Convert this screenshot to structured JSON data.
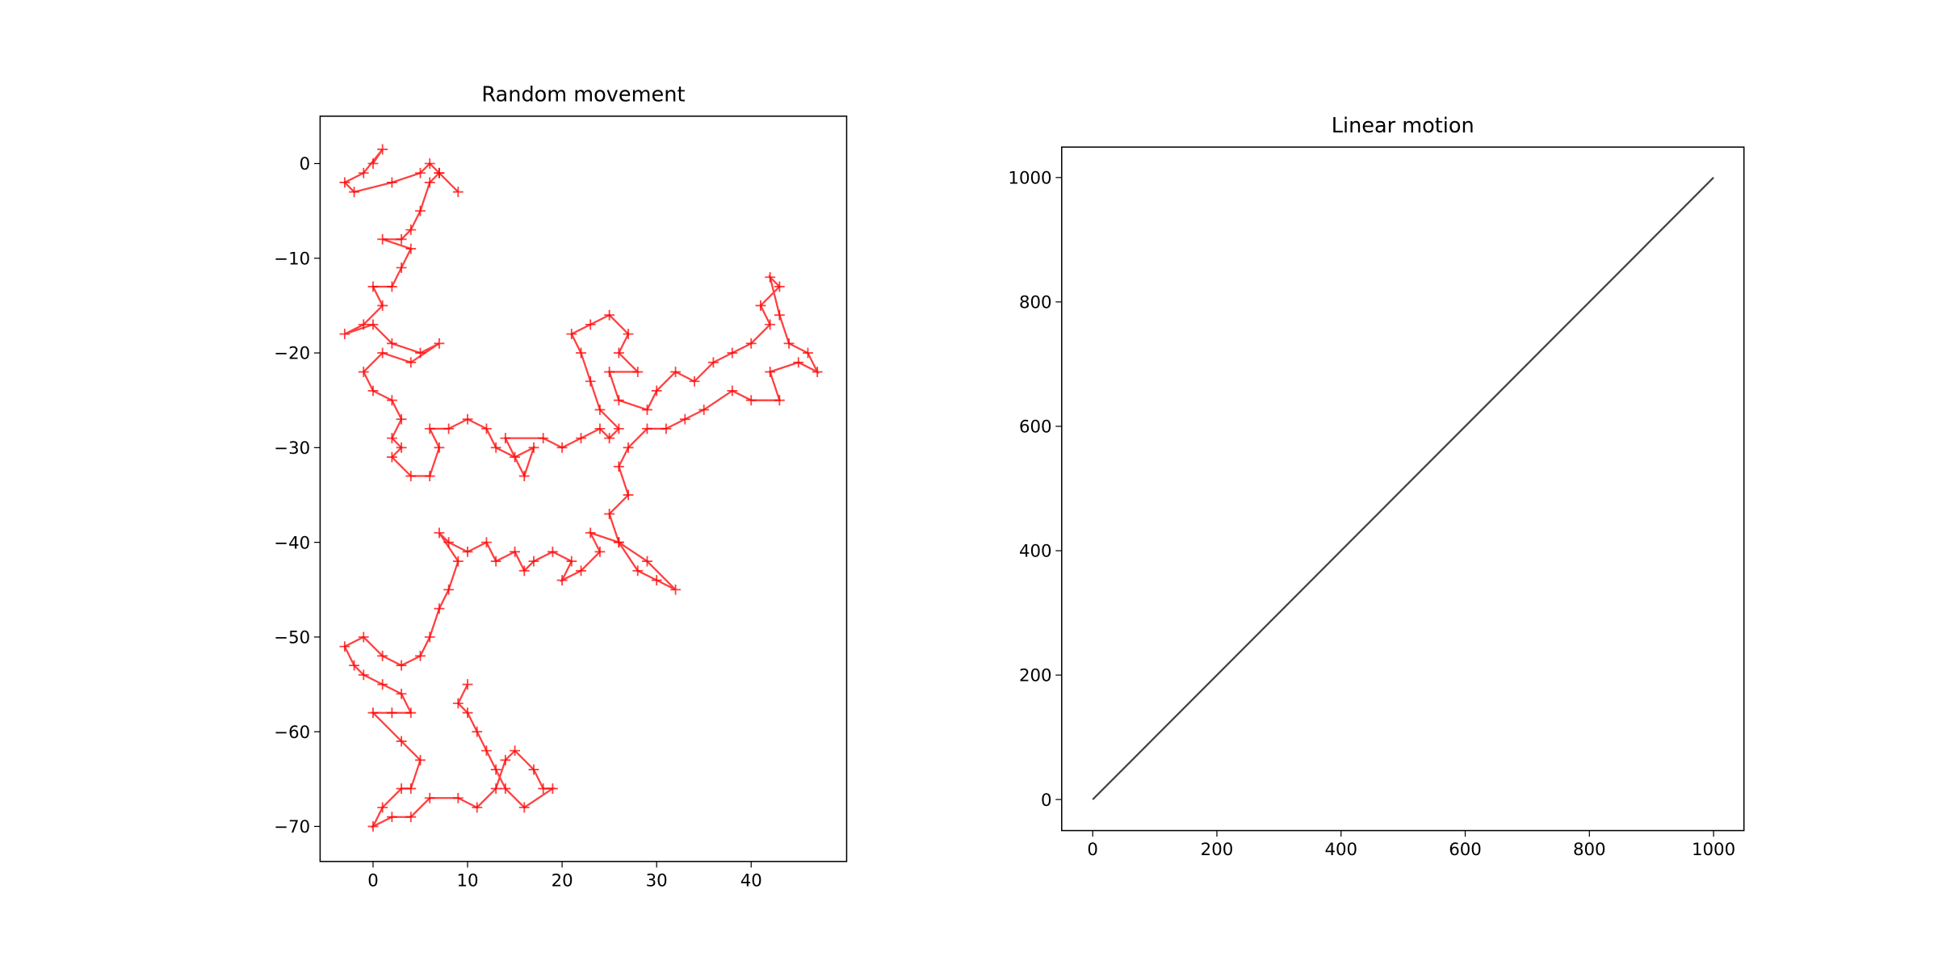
{
  "chart_data": [
    {
      "type": "line",
      "title": "Random movement",
      "color": "#ff0000",
      "marker": "+",
      "x": [
        0,
        1,
        -1,
        -3,
        -2,
        2,
        5,
        6,
        7,
        9,
        7,
        6,
        5,
        4,
        3,
        1,
        4,
        3,
        2,
        0,
        1,
        -1,
        -3,
        0,
        2,
        5,
        7,
        4,
        1,
        -1,
        0,
        2,
        3,
        2,
        3,
        2,
        4,
        6,
        7,
        6,
        8,
        10,
        12,
        13,
        15,
        17,
        16,
        14,
        18,
        20,
        22,
        24,
        25,
        26,
        24,
        23,
        22,
        21,
        23,
        25,
        27,
        26,
        28,
        25,
        26,
        29,
        30,
        32,
        34,
        36,
        38,
        40,
        42,
        41,
        43,
        42,
        43,
        44,
        46,
        47,
        45,
        42,
        43,
        40,
        38,
        35,
        33,
        31,
        29,
        27,
        26,
        27,
        25,
        26,
        28,
        30,
        32,
        29,
        26,
        23,
        24,
        22,
        20,
        21,
        19,
        17,
        16,
        15,
        13,
        12,
        10,
        8,
        7,
        9,
        8,
        7,
        6,
        5,
        3,
        1,
        -1,
        -3,
        -2,
        -1,
        1,
        3,
        4,
        2,
        0,
        3,
        5,
        4,
        3,
        1,
        0,
        2,
        4,
        6,
        9,
        11,
        13,
        14,
        15,
        17,
        18,
        19,
        16,
        14,
        13,
        12,
        11,
        10,
        9,
        10
      ],
      "values": [
        0,
        1.5,
        -1,
        -2,
        -3,
        -2,
        -1,
        0,
        -1,
        -3,
        -1,
        -2,
        -5,
        -7,
        -8,
        -8,
        -9,
        -11,
        -13,
        -13,
        -15,
        -17,
        -18,
        -17,
        -19,
        -20,
        -19,
        -21,
        -20,
        -22,
        -24,
        -25,
        -27,
        -29,
        -30,
        -31,
        -33,
        -33,
        -30,
        -28,
        -28,
        -27,
        -28,
        -30,
        -31,
        -30,
        -33,
        -29,
        -29,
        -30,
        -29,
        -28,
        -29,
        -28,
        -26,
        -23,
        -20,
        -18,
        -17,
        -16,
        -18,
        -20,
        -22,
        -22,
        -25,
        -26,
        -24,
        -22,
        -23,
        -21,
        -20,
        -19,
        -17,
        -15,
        -13,
        -12,
        -16,
        -19,
        -20,
        -22,
        -21,
        -22,
        -25,
        -25,
        -24,
        -26,
        -27,
        -28,
        -28,
        -30,
        -32,
        -35,
        -37,
        -40,
        -43,
        -44,
        -45,
        -42,
        -40,
        -39,
        -41,
        -43,
        -44,
        -42,
        -41,
        -42,
        -43,
        -41,
        -42,
        -40,
        -41,
        -40,
        -39,
        -42,
        -45,
        -47,
        -50,
        -52,
        -53,
        -52,
        -50,
        -51,
        -53,
        -54,
        -55,
        -56,
        -58,
        -58,
        -58,
        -61,
        -63,
        -66,
        -66,
        -68,
        -70,
        -69,
        -69,
        -67,
        -67,
        -68,
        -66,
        -63,
        -62,
        -64,
        -66,
        -66,
        -68,
        -66,
        -64,
        -62,
        -60,
        -58,
        -57,
        -55
      ],
      "xlim": [
        -5.6,
        50.1
      ],
      "ylim": [
        -73.7,
        5.0
      ],
      "xticks": [
        0,
        10,
        20,
        30,
        40
      ],
      "yticks": [
        {
          "value": -70,
          "label": "−70"
        },
        {
          "value": -60,
          "label": "−60"
        },
        {
          "value": -50,
          "label": "−50"
        },
        {
          "value": -40,
          "label": "−40"
        },
        {
          "value": -30,
          "label": "−30"
        },
        {
          "value": -20,
          "label": "−20"
        },
        {
          "value": -10,
          "label": "−10"
        },
        0
      ]
    },
    {
      "type": "line",
      "title": "Linear motion",
      "color": "#444444",
      "x": [
        0,
        100,
        200,
        300,
        400,
        500,
        600,
        700,
        800,
        900,
        1000
      ],
      "values": [
        0,
        100,
        200,
        300,
        400,
        500,
        600,
        700,
        800,
        900,
        1000
      ],
      "xlim": [
        -49.95,
        1048.95
      ],
      "ylim": [
        -49.95,
        1048.95
      ],
      "xticks": [
        0,
        200,
        400,
        600,
        800,
        1000
      ],
      "yticks": [
        0,
        200,
        400,
        600,
        800,
        1000
      ]
    }
  ]
}
